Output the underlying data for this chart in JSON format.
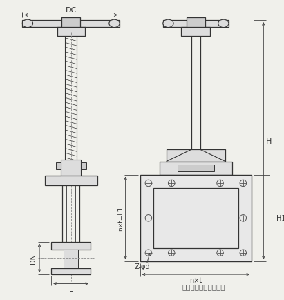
{
  "bg_color": "#f0f0eb",
  "line_color": "#333333",
  "dim_color": "#444444",
  "text_color": "#333333",
  "title_text": "无锡市华压江南阀门厂",
  "dim_DC": "DC",
  "dim_DN": "DN",
  "dim_L": "L",
  "dim_H": "H",
  "dim_H1": "H1",
  "dim_nxt": "n×t",
  "dim_nxtL1": "n×t=L1",
  "dim_Zphid": "Z-φd",
  "figsize": [
    4.11,
    4.35
  ],
  "dpi": 100
}
